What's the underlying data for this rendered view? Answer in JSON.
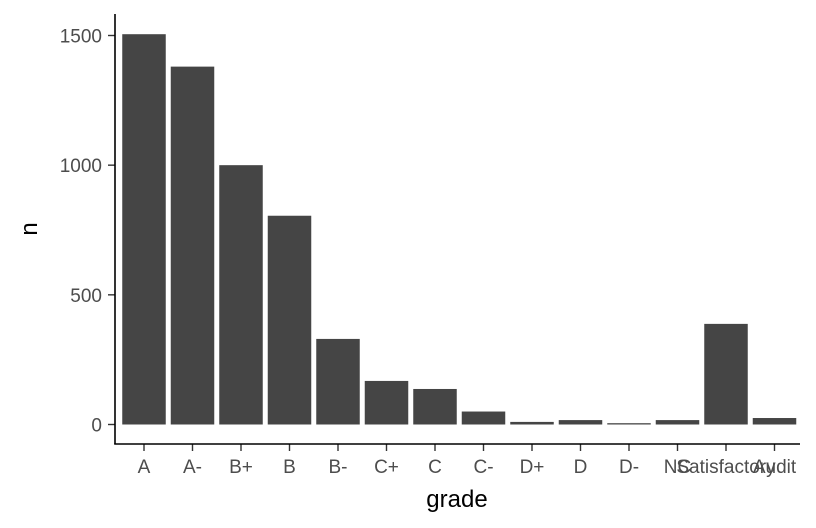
{
  "chart_data": {
    "type": "bar",
    "categories": [
      "A",
      "A-",
      "B+",
      "B",
      "B-",
      "C+",
      "C",
      "C-",
      "D+",
      "D",
      "D-",
      "NC",
      "Satisfactory",
      "Audit"
    ],
    "values": [
      1505,
      1380,
      1000,
      805,
      330,
      168,
      137,
      50,
      10,
      17,
      5,
      17,
      388,
      25
    ],
    "title": "",
    "xlabel": "grade",
    "ylabel": "n",
    "ylim": [
      0,
      1500
    ],
    "yticks": [
      0,
      500,
      1000,
      1500
    ],
    "grid": false,
    "bar_color": "#454545"
  }
}
